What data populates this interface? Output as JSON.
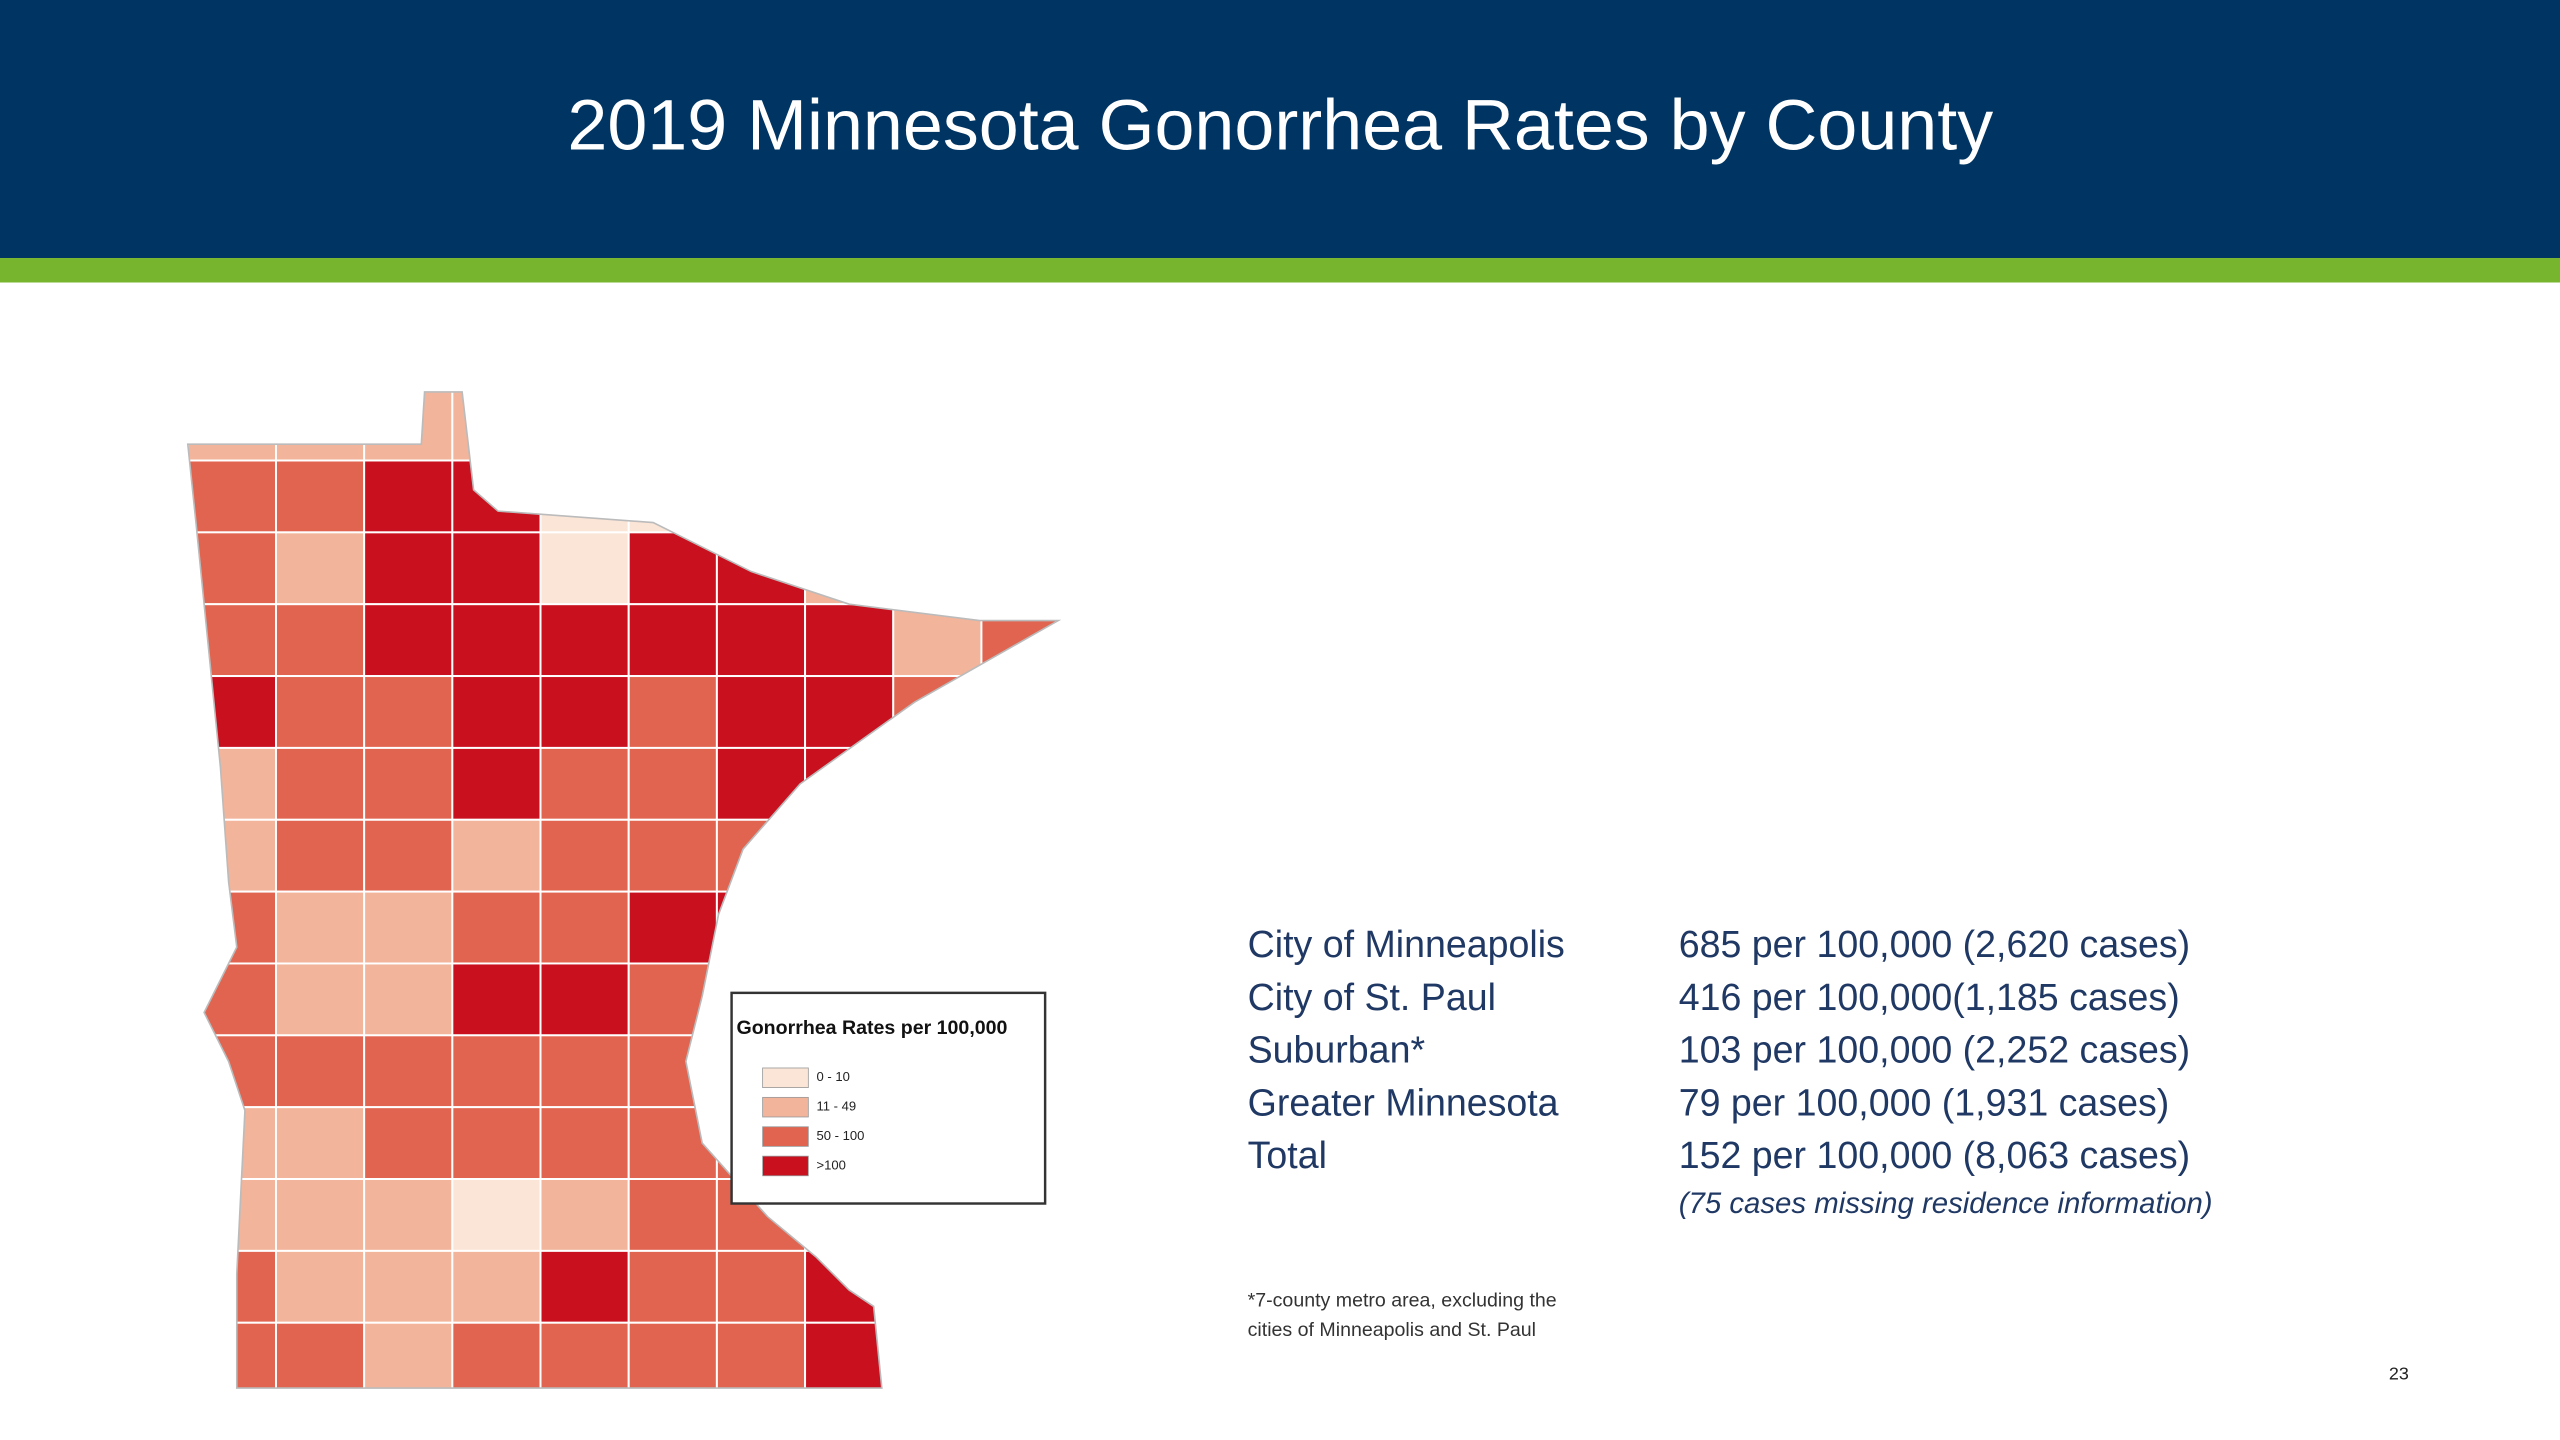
{
  "header": {
    "title": "2019 Minnesota Gonorrhea Rates by County"
  },
  "map": {
    "legend": {
      "title": "Gonorrhea Rates per 100,000",
      "items": [
        {
          "label": "0 - 10",
          "color": "#fbe5d6"
        },
        {
          "label": "11 - 49",
          "color": "#f2b49a"
        },
        {
          "label": "50 - 100",
          "color": "#e06450"
        },
        {
          "label": ">100",
          "color": "#c8101e"
        }
      ]
    }
  },
  "table": {
    "rows": [
      [
        "City of Minneapolis",
        "685 per 100,000 (2,620 cases)"
      ],
      [
        "City of St. Paul",
        "416 per 100,000(1,185 cases)"
      ],
      [
        "Suburban*",
        "103 per 100,000 (2,252 cases)"
      ],
      [
        "Greater Minnesota",
        "79 per 100,000 (1,931 cases)"
      ],
      [
        "Total",
        "152 per 100,000 (8,063 cases)"
      ]
    ],
    "note": "(75 cases missing residence information)"
  },
  "footnote": [
    "*7-county metro area, excluding the",
    "cities of Minneapolis and St. Paul"
  ],
  "page_number": "23"
}
